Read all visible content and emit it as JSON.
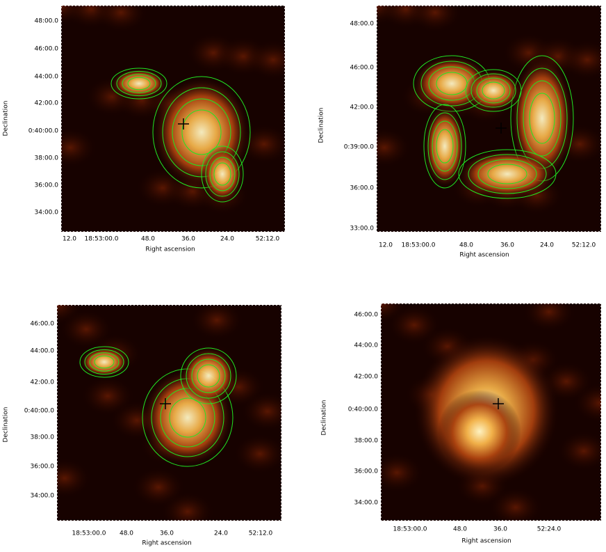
{
  "panels": [
    {
      "ylabel": "Declination",
      "xlabel": "Right ascension",
      "yticks": [
        "48:00.0",
        "46:00.0",
        "44:00.0",
        "42:00.0",
        "0:40:00.0",
        "38:00.0",
        "36:00.0",
        "34:00.0"
      ],
      "xticks": [
        "12.0",
        "18:53:00.0",
        "48.0",
        "36.0",
        "24.0",
        "52:12.0"
      ]
    },
    {
      "ylabel": "Declination",
      "xlabel": "Right ascension",
      "yticks": [
        "48:00.0",
        "46:00.0",
        "42:00.0",
        "0:39:00.0",
        "36:00.0",
        "33:00.0"
      ],
      "xticks": [
        "12.0",
        "18:53:00.0",
        "48.0",
        "36.0",
        "24.0",
        "52:12.0"
      ]
    },
    {
      "ylabel": "Declination",
      "xlabel": "Right ascension",
      "yticks": [
        "46:00.0",
        "44:00.0",
        "42:00.0",
        "0:40:00.0",
        "38:00.0",
        "36:00.0",
        "34:00.0"
      ],
      "xticks": [
        "18:53:00.0",
        "48.0",
        "36.0",
        "24.0",
        "52:12.0"
      ]
    },
    {
      "ylabel": "Declination",
      "xlabel": "Right ascension",
      "yticks": [
        "46:00.0",
        "44:00.0",
        "42:00.0",
        "0:40:00.0",
        "38:00.0",
        "36:00.0",
        "34:00.0"
      ],
      "xticks": [
        "18:53:00.0",
        "48.0",
        "36.0",
        "52:24.0"
      ]
    }
  ]
}
